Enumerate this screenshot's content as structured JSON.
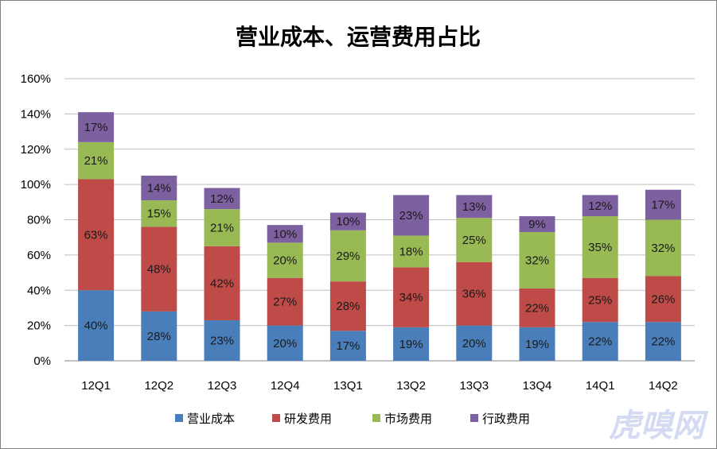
{
  "chart_data": {
    "type": "bar",
    "stacked": true,
    "title": "营业成本、运营费用占比",
    "categories": [
      "12Q1",
      "12Q2",
      "12Q3",
      "12Q4",
      "13Q1",
      "13Q2",
      "13Q3",
      "13Q4",
      "14Q1",
      "14Q2"
    ],
    "series": [
      {
        "name": "营业成本",
        "color": "#4a7ebb",
        "values": [
          40,
          28,
          23,
          20,
          17,
          19,
          20,
          19,
          22,
          22
        ]
      },
      {
        "name": "研发费用",
        "color": "#be4b48",
        "values": [
          63,
          48,
          42,
          27,
          28,
          34,
          36,
          22,
          25,
          26
        ]
      },
      {
        "name": "市场费用",
        "color": "#98b954",
        "values": [
          21,
          15,
          21,
          20,
          29,
          18,
          25,
          32,
          35,
          32
        ]
      },
      {
        "name": "行政费用",
        "color": "#7d60a0",
        "values": [
          17,
          14,
          12,
          10,
          10,
          23,
          13,
          9,
          12,
          17
        ]
      }
    ],
    "ylim": [
      0,
      160
    ],
    "yticks": [
      "0%",
      "20%",
      "40%",
      "60%",
      "80%",
      "100%",
      "120%",
      "140%",
      "160%"
    ],
    "value_suffix": "%",
    "grid": true,
    "legend_position": "bottom"
  },
  "watermark": "虎嗅网"
}
